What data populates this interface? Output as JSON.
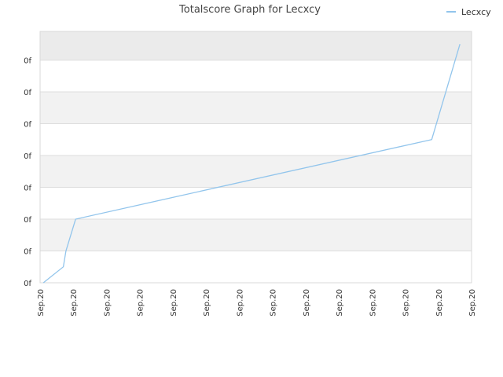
{
  "chart_data": {
    "type": "line",
    "title": "Totalscore Graph for Lecxcy",
    "xlabel": "",
    "ylabel": "",
    "x_tick_labels": [
      "Sep.20",
      "Sep.20",
      "Sep.20",
      "Sep.20",
      "Sep.20",
      "Sep.20",
      "Sep.20",
      "Sep.20",
      "Sep.20",
      "Sep.20",
      "Sep.20",
      "Sep.20",
      "Sep.20",
      "Sep.20"
    ],
    "y_tick_labels": [
      "0f",
      "0f",
      "0f",
      "0f",
      "0f",
      "0f",
      "0f",
      "0f"
    ],
    "legend_position": "top-right",
    "grid": true,
    "series": [
      {
        "name": "Lecxcy",
        "color": "#92c5ec",
        "points": [
          {
            "x": 0.1,
            "y": 0
          },
          {
            "x": 0.7,
            "y": 0.5
          },
          {
            "x": 0.78,
            "y": 1.0
          },
          {
            "x": 1.07,
            "y": 2.0
          },
          {
            "x": 11.8,
            "y": 4.5
          },
          {
            "x": 12.65,
            "y": 7.5
          }
        ]
      }
    ],
    "xlim": [
      0,
      13
    ],
    "ylim": [
      0,
      7.9
    ]
  },
  "colors": {
    "band": "#f2f2f2",
    "top_band": "#ebebeb",
    "grid": "#dddddd",
    "axis": "#cccccc"
  }
}
